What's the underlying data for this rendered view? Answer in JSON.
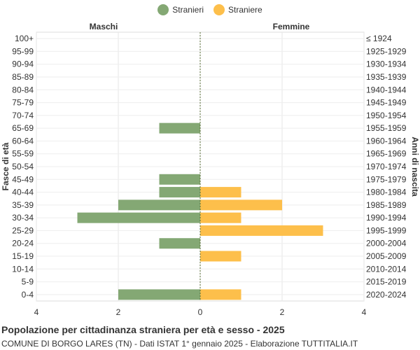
{
  "legend": {
    "items": [
      {
        "label": "Stranieri",
        "color": "#84a874"
      },
      {
        "label": "Straniere",
        "color": "#fdbf4b"
      }
    ]
  },
  "footer": {
    "title": "Popolazione per cittadinanza straniera per età e sesso - 2025",
    "subtitle": "COMUNE DI BORGO LARES (TN) - Dati ISTAT 1° gennaio 2025 - Elaborazione TUTTITALIA.IT"
  },
  "chart_data": {
    "type": "bar",
    "orientation": "horizontal-population-pyramid",
    "left_header": "Maschi",
    "right_header": "Femmine",
    "ylabel_left": "Fasce di età",
    "ylabel_right": "Anni di nascita",
    "xlim": [
      -4,
      4
    ],
    "x_ticks": [
      {
        "value": -4,
        "label": "4"
      },
      {
        "value": -2,
        "label": "2"
      },
      {
        "value": 0,
        "label": "0"
      },
      {
        "value": 2,
        "label": "2"
      },
      {
        "value": 4,
        "label": "4"
      }
    ],
    "grid": true,
    "categories": [
      "100+",
      "95-99",
      "90-94",
      "85-89",
      "80-84",
      "75-79",
      "70-74",
      "65-69",
      "60-64",
      "55-59",
      "50-54",
      "45-49",
      "40-44",
      "35-39",
      "30-34",
      "25-29",
      "20-24",
      "15-19",
      "10-14",
      "5-9",
      "0-4"
    ],
    "birth_years": [
      "≤ 1924",
      "1925-1929",
      "1930-1934",
      "1935-1939",
      "1940-1944",
      "1945-1949",
      "1950-1954",
      "1955-1959",
      "1960-1964",
      "1965-1969",
      "1970-1974",
      "1975-1979",
      "1980-1984",
      "1985-1989",
      "1990-1994",
      "1995-1999",
      "2000-2004",
      "2005-2009",
      "2010-2014",
      "2015-2019",
      "2020-2024"
    ],
    "series": [
      {
        "name": "Stranieri",
        "color": "#84a874",
        "side": "left",
        "values": [
          0,
          0,
          0,
          0,
          0,
          0,
          0,
          1,
          0,
          0,
          0,
          1,
          1,
          2,
          3,
          0,
          1,
          0,
          0,
          0,
          2
        ]
      },
      {
        "name": "Straniere",
        "color": "#fdbf4b",
        "side": "right",
        "values": [
          0,
          0,
          0,
          0,
          0,
          0,
          0,
          0,
          0,
          0,
          0,
          0,
          1,
          2,
          1,
          3,
          0,
          1,
          0,
          0,
          1
        ]
      }
    ]
  }
}
